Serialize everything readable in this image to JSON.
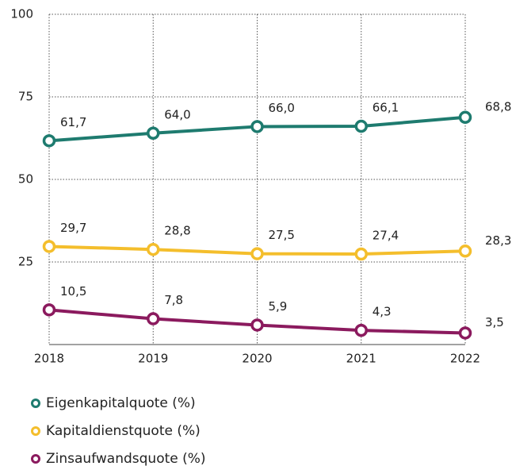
{
  "chart_data": {
    "type": "line",
    "categories": [
      "2018",
      "2019",
      "2020",
      "2021",
      "2022"
    ],
    "series": [
      {
        "name": "Eigenkapitalquote (%)",
        "color": "#1e7b6f",
        "values": [
          61.7,
          64.0,
          66.0,
          66.1,
          68.8
        ],
        "value_labels": [
          "61,7",
          "64,0",
          "66,0",
          "66,1",
          "68,8"
        ]
      },
      {
        "name": "Kapitaldienstquote (%)",
        "color": "#f4be2c",
        "values": [
          29.7,
          28.8,
          27.5,
          27.4,
          28.3
        ],
        "value_labels": [
          "29,7",
          "28,8",
          "27,5",
          "27,4",
          "28,3"
        ]
      },
      {
        "name": "Zinsaufwandsquote (%)",
        "color": "#8b1a5e",
        "values": [
          10.5,
          7.8,
          5.9,
          4.3,
          3.5
        ],
        "value_labels": [
          "10,5",
          "7,8",
          "5,9",
          "4,3",
          "3,5"
        ]
      }
    ],
    "ylim": [
      0,
      100
    ],
    "yticks": [
      25,
      50,
      75,
      100
    ],
    "grid": true
  }
}
